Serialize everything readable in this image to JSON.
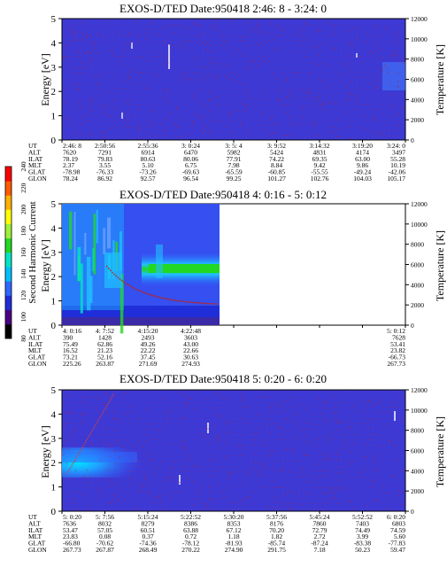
{
  "colors": {
    "background": "#3d3ad6",
    "spectrogram_blue": "#2d2fd0",
    "temperature_dots": "#c02020",
    "text": "#000000"
  },
  "colorbar": {
    "label": "Second Harmonic Current",
    "ticks": [
      "80",
      "100",
      "120",
      "140",
      "160",
      "180",
      "200",
      "220",
      "240"
    ],
    "colors": [
      "#000000",
      "#4b0082",
      "#1f2ed8",
      "#2f67ff",
      "#00bfff",
      "#00e5c8",
      "#22d822",
      "#9cf03a",
      "#ffff00",
      "#ffb000",
      "#ff5a00",
      "#ff0000"
    ]
  },
  "chart_data": [
    {
      "type": "heatmap",
      "title": "EXOS-D/TED   Date:950418  2:46: 8 - 3:24: 0",
      "ylabel": "Energy [eV]",
      "y2label": "Temperature [K]",
      "ylim": [
        0,
        5
      ],
      "y2lim": [
        0,
        12000
      ],
      "y_ticks": [
        "0",
        "1",
        "2",
        "3",
        "4",
        "5"
      ],
      "y2_ticks": [
        "0",
        "2000",
        "4000",
        "6000",
        "8000",
        "10000",
        "12000"
      ],
      "data_extent": [
        0,
        1
      ],
      "rows": [
        {
          "label": "UT",
          "values": [
            "2:46: 8",
            "2:50:56",
            "2:55:36",
            "3: 0:24",
            "3: 5: 4",
            "3: 9:52",
            "3:14:32",
            "3:19:20",
            "3:24: 0"
          ]
        },
        {
          "label": "ALT",
          "values": [
            "7620",
            "7291",
            "6914",
            "6470",
            "5982",
            "5424",
            "4831",
            "4174",
            "3497"
          ]
        },
        {
          "label": "ILAT",
          "values": [
            "78.19",
            "79.83",
            "80.63",
            "80.06",
            "77.91",
            "74.22",
            "69.35",
            "63.00",
            "55.28"
          ]
        },
        {
          "label": "MLT",
          "values": [
            "2.37",
            "3.55",
            "5.10",
            "6.75",
            "7.98",
            "8.84",
            "9.42",
            "9.86",
            "10.19"
          ]
        },
        {
          "label": "GLAT",
          "values": [
            "-78.98",
            "-76.33",
            "-73.26",
            "-69.63",
            "-65.59",
            "-60.85",
            "-55.55",
            "-49.24",
            "-42.06"
          ]
        },
        {
          "label": "GLON",
          "values": [
            "78.24",
            "86.92",
            "92.57",
            "96.54",
            "99.25",
            "101.27",
            "102.76",
            "104.03",
            "105.17"
          ]
        }
      ]
    },
    {
      "type": "heatmap",
      "title": "EXOS-D/TED   Date:950418  4: 0:16 - 5: 0:12",
      "ylabel": "Energy [eV]",
      "y2label": "Temperature [K]",
      "ylim": [
        0,
        5
      ],
      "y2lim": [
        0,
        12000
      ],
      "y_ticks": [
        "0",
        "1",
        "2",
        "3",
        "4",
        "5"
      ],
      "y2_ticks": [
        "0",
        "2000",
        "4000",
        "6000",
        "8000",
        "10000",
        "12000"
      ],
      "data_extent": [
        0,
        0.45
      ],
      "rows": [
        {
          "label": "UT",
          "values": [
            "4: 0:16",
            "4: 7:52",
            "4:15:20",
            "4:22:48",
            "",
            "",
            "",
            "",
            "5: 0:12"
          ]
        },
        {
          "label": "ALT",
          "values": [
            "390",
            "1428",
            "2493",
            "3603",
            "",
            "",
            "",
            "",
            "7628"
          ]
        },
        {
          "label": "ILAT",
          "values": [
            "75.49",
            "62.86",
            "49.26",
            "43.00",
            "",
            "",
            "",
            "",
            "53.41"
          ]
        },
        {
          "label": "MLT",
          "values": [
            "16.52",
            "21.23",
            "22.22",
            "22.66",
            "",
            "",
            "",
            "",
            "23.82"
          ]
        },
        {
          "label": "GLAT",
          "values": [
            "73.21",
            "52.16",
            "37.45",
            "30.63",
            "",
            "",
            "",
            "",
            "-66.73"
          ]
        },
        {
          "label": "GLON",
          "values": [
            "225.26",
            "263.87",
            "271.69",
            "274.93",
            "",
            "",
            "",
            "",
            "267.73"
          ]
        }
      ]
    },
    {
      "type": "heatmap",
      "title": "EXOS-D/TED   Date:950418  5: 0:20 - 6: 0:20",
      "ylabel": "Energy [eV]",
      "y2label": "Temperature [K]",
      "ylim": [
        0,
        5
      ],
      "y2lim": [
        0,
        12000
      ],
      "y_ticks": [
        "0",
        "1",
        "2",
        "3",
        "4",
        "5"
      ],
      "y2_ticks": [
        "0",
        "2000",
        "4000",
        "6000",
        "8000",
        "10000",
        "12000"
      ],
      "data_extent": [
        0,
        1
      ],
      "rows": [
        {
          "label": "UT",
          "values": [
            "5: 0:20",
            "5: 7:56",
            "5:15:24",
            "5:22:52",
            "5:30:20",
            "5:37:56",
            "5:45:24",
            "5:52:52",
            "6: 0:20"
          ]
        },
        {
          "label": "ALT",
          "values": [
            "7636",
            "8032",
            "8279",
            "8386",
            "8353",
            "8176",
            "7860",
            "7403",
            "6803"
          ]
        },
        {
          "label": "ILAT",
          "values": [
            "53.47",
            "57.05",
            "60.51",
            "63.88",
            "67.12",
            "70.20",
            "72.79",
            "74.49",
            "74.59"
          ]
        },
        {
          "label": "MLT",
          "values": [
            "23.83",
            "0.08",
            "0.37",
            "0.72",
            "1.18",
            "1.82",
            "2.72",
            "3.99",
            "5.60"
          ]
        },
        {
          "label": "GLAT",
          "values": [
            "-66.80",
            "-70.62",
            "-74.36",
            "-78.12",
            "-81.93",
            "-85.74",
            "-87.24",
            "-83.38",
            "-77.83"
          ]
        },
        {
          "label": "GLON",
          "values": [
            "267.73",
            "267.87",
            "268.49",
            "270.22",
            "274.90",
            "291.75",
            "7.18",
            "50.23",
            "59.47"
          ]
        }
      ]
    }
  ]
}
